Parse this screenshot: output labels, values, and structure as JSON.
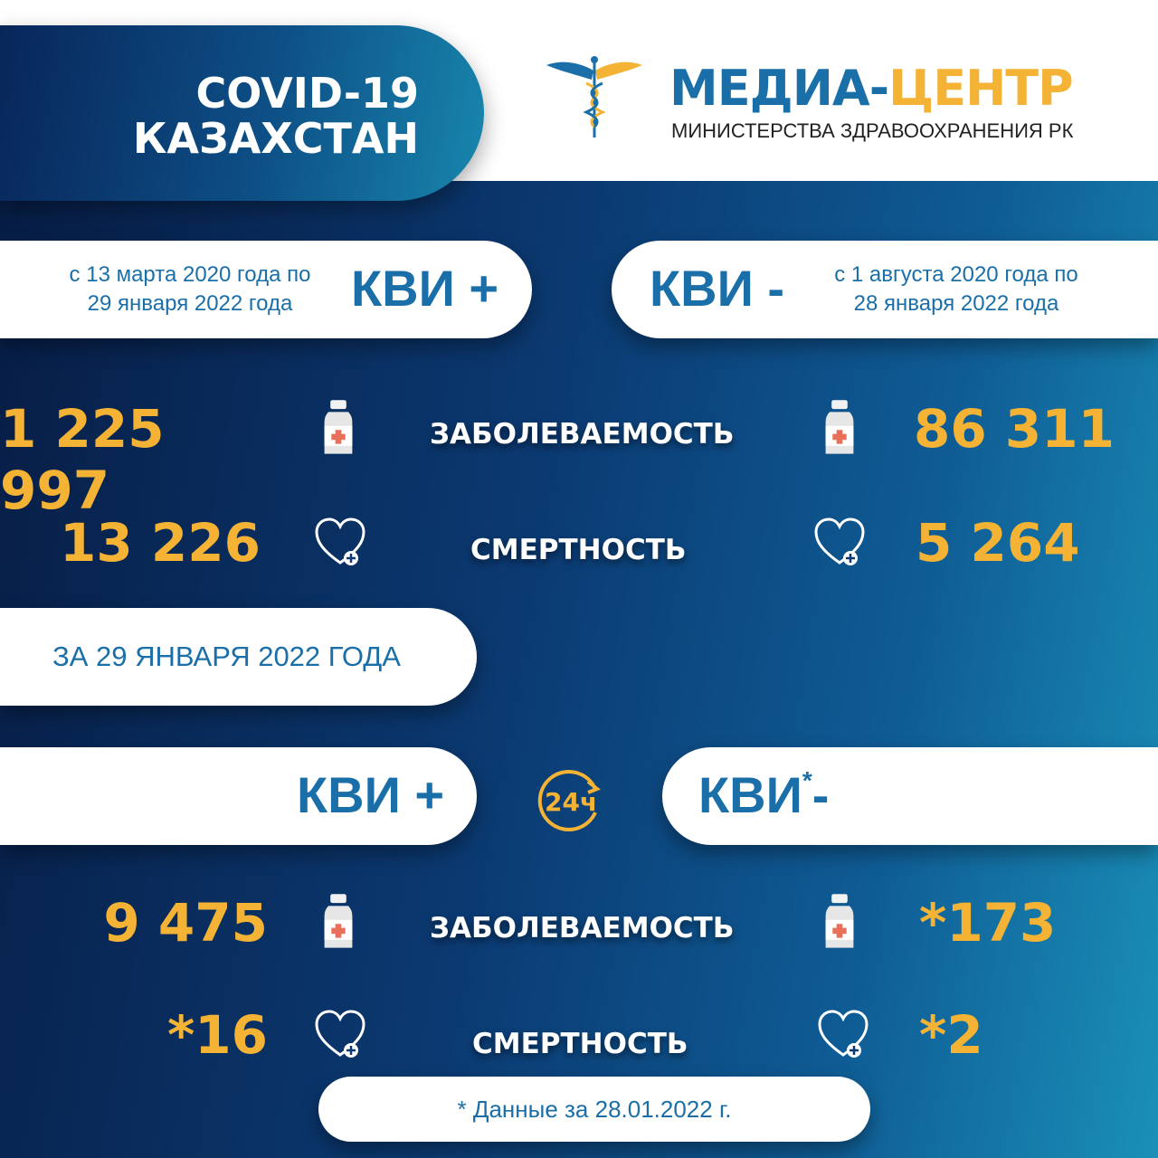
{
  "header": {
    "title_line1": "COVID-19",
    "title_line2": "КАЗАХСТАН"
  },
  "logo": {
    "name_part1": "МЕДИА-",
    "name_part2": "ЦЕНТР",
    "subtitle": "МИНИСТЕРСТВА ЗДРАВООХРАНЕНИЯ РК",
    "icon": "caduceus-icon"
  },
  "total": {
    "positive": {
      "label": "КВИ +",
      "period": [
        "с 13 марта 2020 года по",
        "29 января 2022 года"
      ],
      "cases": "1 225 997",
      "deaths": "13 226"
    },
    "negative": {
      "label": "КВИ -",
      "period": [
        "с 1 августа 2020 года по",
        "28 января 2022 года"
      ],
      "cases": "86 311",
      "deaths": "5 264"
    },
    "cases_label": "ЗАБОЛЕВАЕМОСТЬ",
    "deaths_label": "СМЕРТНОСТЬ"
  },
  "daily": {
    "date_label": "ЗА 29 ЯНВАРЯ 2022 ГОДА",
    "badge": "24ч",
    "positive": {
      "label": "КВИ +",
      "cases": "9 475",
      "deaths": "*16"
    },
    "negative": {
      "label": "КВИ",
      "asterisk": "*",
      "suffix": "-",
      "cases": "*173",
      "deaths": "*2"
    },
    "cases_label": "ЗАБОЛЕВАЕМОСТЬ",
    "deaths_label": "СМЕРТНОСТЬ"
  },
  "footnote": "* Данные за 28.01.2022 г.",
  "colors": {
    "accent": "#f5b335",
    "brand_blue": "#1b6fa8",
    "navy": "#071d45"
  }
}
